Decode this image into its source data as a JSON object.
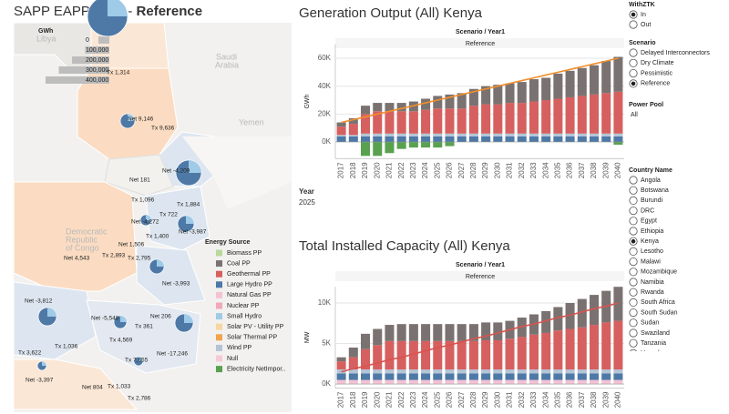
{
  "header": {
    "title": "SAPP EAPP  2025 - ",
    "title_bold": "Reference"
  },
  "map": {
    "size_legend": {
      "title": "GWh",
      "items": [
        0,
        {
          "value": 100000,
          "label": "100,000"
        },
        {
          "value": 200000,
          "label": "200,000"
        },
        {
          "value": 300000,
          "label": "300,000"
        },
        {
          "value": 400000,
          "label": "400,000"
        }
      ]
    },
    "place_names": [
      "Libya",
      "Saudi",
      "Arabia",
      "Yemen",
      "Democratic",
      "Republic",
      "of Congo"
    ],
    "flow_labels": [
      "Tx 1,314",
      "Net 9,146",
      "Tx 9,636",
      "Net 181",
      "Net -4,209",
      "Tx 1,096",
      "Tx 722",
      "Tx 1,884",
      "Net -4,272",
      "Net -3,987",
      "Tx 1,400",
      "Net 1,506",
      "Tx 2,893",
      "Tx 2,795",
      "Net 4,543",
      "Net -3,993",
      "Net -3,812",
      "Net -5,548",
      "Net 206",
      "Tx 361",
      "Tx 4,569",
      "Tx 1,036",
      "Net -17,246",
      "Tx 3,622",
      "Tx 7,655",
      "Net -3,397",
      "Net 804",
      "Tx 1,033",
      "Tx 2,786"
    ],
    "energy_legend": {
      "title": "Energy Source",
      "items": [
        {
          "name": "Biomass PP",
          "color": "#b8d99b"
        },
        {
          "name": "Coal PP",
          "color": "#7a7271"
        },
        {
          "name": "Geothermal PP",
          "color": "#d6605f"
        },
        {
          "name": "Large Hydro PP",
          "color": "#4e79a7"
        },
        {
          "name": "Natural Gas PP",
          "color": "#f3c2d3"
        },
        {
          "name": "Nuclear PP",
          "color": "#f1a8b8"
        },
        {
          "name": "Small Hydro",
          "color": "#a0cbe8"
        },
        {
          "name": "Solar PV - Utility PP",
          "color": "#f6d7a0"
        },
        {
          "name": "Solar Thermal PP",
          "color": "#f1a34f"
        },
        {
          "name": "Wind PP",
          "color": "#b3c4d8"
        },
        {
          "name": "Null",
          "color": "#f6c9d9"
        },
        {
          "name": "Electricity NetImpor..",
          "color": "#59a14f"
        }
      ]
    }
  },
  "year_filter": {
    "label": "Year",
    "value": "2025"
  },
  "filters": {
    "withztk": {
      "title": "WithZTK",
      "options": [
        "In",
        "Out"
      ],
      "selected": 0
    },
    "scenario": {
      "title": "Scenario",
      "options": [
        "Delayed Interconnectors",
        "Dry Climate",
        "Pessimistic",
        "Reference"
      ],
      "selected": 3
    },
    "power_pool": {
      "title": "Power Pool",
      "value": "All"
    },
    "country": {
      "title": "Country Name",
      "options": [
        "Angola",
        "Botswana",
        "Burundi",
        "DRC",
        "Egypt",
        "Ethiopia",
        "Kenya",
        "Lesotho",
        "Malawi",
        "Mozambique",
        "Namibia",
        "Rwanda",
        "South Africa",
        "South Sudan",
        "Sudan",
        "Swaziland",
        "Tanzania",
        "Uganda"
      ],
      "selected": 6
    }
  },
  "chart_data": [
    {
      "type": "stacked_bar",
      "title": "Generation Output  (All) Kenya",
      "header": "Scenario / Year1",
      "facet": "Reference",
      "y_label": "GWh",
      "categories": [
        "2017",
        "2018",
        "2019",
        "2020",
        "2021",
        "2022",
        "2023",
        "2024",
        "2025",
        "2026",
        "2027",
        "2028",
        "2029",
        "2030",
        "2031",
        "2032",
        "2033",
        "2034",
        "2035",
        "2036",
        "2037",
        "2038",
        "2039",
        "2040"
      ],
      "series": [
        {
          "name": "Large Hydro PP",
          "color": "#4e79a7",
          "values": [
            4000,
            4000,
            4000,
            4000,
            4000,
            4000,
            4000,
            4000,
            4000,
            4000,
            4000,
            4000,
            4000,
            4000,
            4000,
            4000,
            4000,
            4000,
            4000,
            4000,
            4000,
            4000,
            4000,
            4000
          ]
        },
        {
          "name": "Wind PP",
          "color": "#b3c4d8",
          "values": [
            1000,
            1000,
            2000,
            2000,
            2000,
            2000,
            2000,
            2000,
            2000,
            2000,
            2000,
            2000,
            2000,
            2000,
            2000,
            2000,
            2000,
            2000,
            2000,
            2000,
            2000,
            2000,
            2000,
            2000
          ]
        },
        {
          "name": "Geothermal PP",
          "color": "#d6605f",
          "values": [
            6000,
            8000,
            14000,
            16000,
            16000,
            16000,
            16000,
            17000,
            18000,
            18000,
            18000,
            20000,
            21000,
            21000,
            22000,
            22000,
            23000,
            24000,
            25000,
            26000,
            27000,
            28000,
            29000,
            30000
          ]
        },
        {
          "name": "Coal PP",
          "color": "#7a7271",
          "values": [
            3000,
            4000,
            6000,
            6000,
            6000,
            6000,
            7000,
            8000,
            9000,
            10000,
            11000,
            12000,
            13000,
            14000,
            14000,
            15000,
            16000,
            16000,
            18000,
            19000,
            20000,
            21000,
            23000,
            25000
          ]
        },
        {
          "name": "Electricity NetImpor..",
          "color": "#59a14f",
          "values": [
            0,
            0,
            -10000,
            -10000,
            -8000,
            -5000,
            -4000,
            -4000,
            -4000,
            -3000,
            0,
            0,
            0,
            0,
            0,
            0,
            0,
            0,
            0,
            0,
            0,
            0,
            0,
            -2000
          ]
        }
      ],
      "line": {
        "color": "#f28e2b",
        "values": [
          14000,
          16000,
          18000,
          20000,
          22000,
          24000,
          26000,
          28000,
          30000,
          32000,
          34000,
          36000,
          38000,
          40000,
          42000,
          44000,
          46000,
          48000,
          50000,
          52000,
          54000,
          56000,
          58000,
          60000
        ]
      },
      "ylim": [
        -12000,
        70000
      ],
      "yticks": [
        {
          "value": 0,
          "label": "0K"
        },
        {
          "value": 20000,
          "label": "20K"
        },
        {
          "value": 40000,
          "label": "40K"
        },
        {
          "value": 60000,
          "label": "60K"
        }
      ],
      "grid": true
    },
    {
      "type": "stacked_bar",
      "title": "Total  Installed Capacity (All) Kenya",
      "header": "Scenario / Year1",
      "facet": "Reference",
      "y_label": "MW",
      "categories": [
        "2017",
        "2018",
        "2019",
        "2020",
        "2021",
        "2022",
        "2023",
        "2024",
        "2025",
        "2026",
        "2027",
        "2028",
        "2029",
        "2030",
        "2031",
        "2032",
        "2033",
        "2034",
        "2035",
        "2036",
        "2037",
        "2038",
        "2039",
        "2040"
      ],
      "series": [
        {
          "name": "Natural Gas PP",
          "color": "#f3c2d3",
          "values": [
            500,
            500,
            500,
            500,
            500,
            500,
            500,
            500,
            500,
            500,
            500,
            500,
            500,
            500,
            500,
            500,
            500,
            500,
            500,
            500,
            500,
            500,
            500,
            500
          ]
        },
        {
          "name": "Large Hydro PP",
          "color": "#4e79a7",
          "values": [
            800,
            800,
            800,
            800,
            800,
            800,
            800,
            800,
            800,
            800,
            800,
            800,
            800,
            800,
            800,
            800,
            800,
            800,
            800,
            800,
            800,
            800,
            800,
            800
          ]
        },
        {
          "name": "Wind PP",
          "color": "#b3c4d8",
          "values": [
            500,
            500,
            500,
            500,
            500,
            500,
            500,
            500,
            500,
            500,
            500,
            500,
            500,
            500,
            500,
            500,
            500,
            500,
            500,
            500,
            500,
            500,
            500,
            500
          ]
        },
        {
          "name": "Geothermal PP",
          "color": "#d6605f",
          "values": [
            1000,
            1500,
            2500,
            3000,
            3500,
            3500,
            3500,
            3500,
            3500,
            3500,
            3500,
            3500,
            3600,
            3600,
            3800,
            4000,
            4300,
            4500,
            4800,
            5000,
            5200,
            5500,
            5800,
            6000
          ]
        },
        {
          "name": "Coal PP",
          "color": "#7a7271",
          "values": [
            500,
            1200,
            1900,
            2000,
            2000,
            2100,
            2100,
            2100,
            2100,
            2100,
            2100,
            2100,
            2200,
            2200,
            2200,
            2400,
            2500,
            2700,
            2900,
            3200,
            3500,
            3700,
            3900,
            4200
          ]
        }
      ],
      "line": {
        "color": "#d9534f",
        "values": [
          1500,
          1900,
          2200,
          2600,
          3000,
          3300,
          3700,
          4100,
          4500,
          4800,
          5200,
          5600,
          5900,
          6300,
          6700,
          7100,
          7400,
          7800,
          8200,
          8500,
          8900,
          9300,
          9600,
          10000
        ]
      },
      "ylim": [
        -500,
        12000
      ],
      "yticks": [
        {
          "value": 0,
          "label": "0K"
        },
        {
          "value": 5000,
          "label": "5K"
        },
        {
          "value": 10000,
          "label": "10K"
        }
      ],
      "grid": true
    }
  ]
}
